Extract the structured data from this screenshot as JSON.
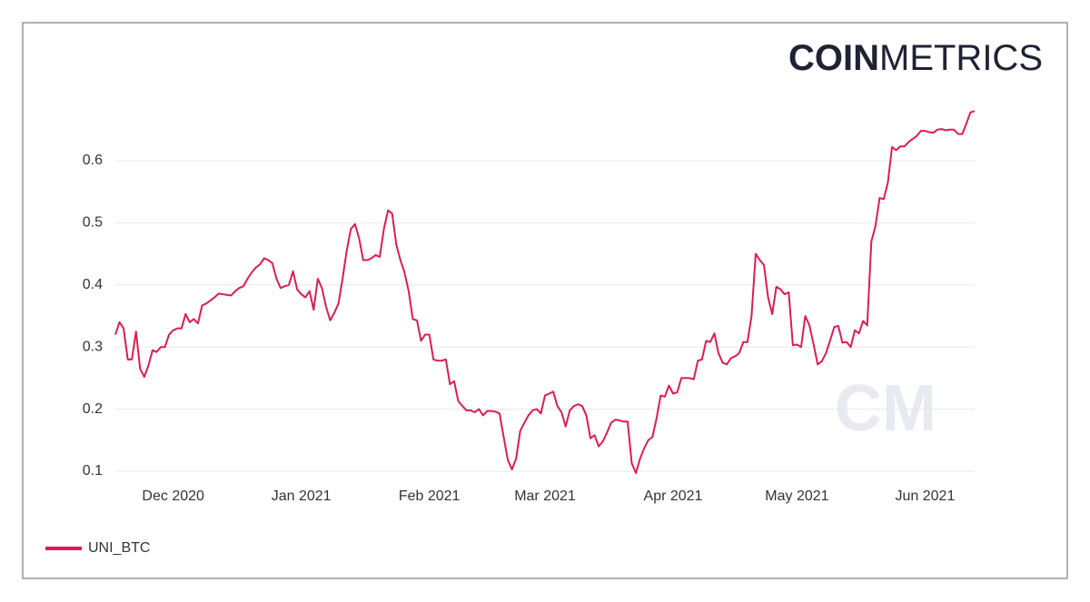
{
  "chart_data": {
    "type": "line",
    "logo": {
      "bold": "COIN",
      "light": "METRICS"
    },
    "watermark": "CM",
    "series": [
      {
        "name": "UNI_BTC",
        "color": "#d81e55",
        "values": [
          0.32,
          0.34,
          0.33,
          0.28,
          0.28,
          0.325,
          0.265,
          0.252,
          0.27,
          0.295,
          0.292,
          0.3,
          0.3,
          0.32,
          0.327,
          0.33,
          0.33,
          0.353,
          0.34,
          0.345,
          0.338,
          0.367,
          0.37,
          0.375,
          0.38,
          0.386,
          0.385,
          0.384,
          0.383,
          0.39,
          0.395,
          0.398,
          0.41,
          0.42,
          0.428,
          0.433,
          0.443,
          0.44,
          0.435,
          0.41,
          0.395,
          0.398,
          0.4,
          0.422,
          0.393,
          0.385,
          0.38,
          0.39,
          0.36,
          0.41,
          0.395,
          0.365,
          0.343,
          0.355,
          0.37,
          0.41,
          0.455,
          0.49,
          0.498,
          0.475,
          0.44,
          0.44,
          0.443,
          0.448,
          0.445,
          0.49,
          0.52,
          0.515,
          0.465,
          0.44,
          0.42,
          0.39,
          0.345,
          0.343,
          0.31,
          0.32,
          0.32,
          0.28,
          0.278,
          0.278,
          0.28,
          0.24,
          0.245,
          0.213,
          0.205,
          0.198,
          0.198,
          0.195,
          0.2,
          0.19,
          0.197,
          0.197,
          0.196,
          0.193,
          0.155,
          0.118,
          0.103,
          0.12,
          0.165,
          0.178,
          0.19,
          0.198,
          0.2,
          0.193,
          0.222,
          0.225,
          0.228,
          0.205,
          0.195,
          0.172,
          0.198,
          0.205,
          0.208,
          0.205,
          0.19,
          0.153,
          0.158,
          0.14,
          0.148,
          0.162,
          0.178,
          0.183,
          0.182,
          0.18,
          0.18,
          0.113,
          0.097,
          0.12,
          0.137,
          0.15,
          0.155,
          0.185,
          0.222,
          0.22,
          0.238,
          0.225,
          0.227,
          0.25,
          0.25,
          0.25,
          0.248,
          0.278,
          0.28,
          0.31,
          0.308,
          0.322,
          0.29,
          0.275,
          0.272,
          0.282,
          0.285,
          0.29,
          0.308,
          0.308,
          0.35,
          0.45,
          0.44,
          0.432,
          0.38,
          0.353,
          0.397,
          0.393,
          0.385,
          0.388,
          0.303,
          0.304,
          0.3,
          0.35,
          0.335,
          0.305,
          0.272,
          0.277,
          0.29,
          0.31,
          0.332,
          0.334,
          0.307,
          0.308,
          0.3,
          0.327,
          0.322,
          0.342,
          0.335,
          0.47,
          0.495,
          0.54,
          0.538,
          0.565,
          0.622,
          0.617,
          0.623,
          0.623,
          0.63,
          0.635,
          0.64,
          0.648,
          0.648,
          0.646,
          0.645,
          0.65,
          0.651,
          0.649,
          0.65,
          0.65,
          0.643,
          0.643,
          0.66,
          0.678,
          0.68
        ]
      }
    ],
    "xlim": [
      0,
      208
    ],
    "xticks": [
      {
        "value": 14,
        "label": "Dec 2020"
      },
      {
        "value": 45,
        "label": "Jan 2021"
      },
      {
        "value": 76,
        "label": "Feb 2021"
      },
      {
        "value": 104,
        "label": "Mar 2021"
      },
      {
        "value": 135,
        "label": "Apr 2021"
      },
      {
        "value": 165,
        "label": "May 2021"
      },
      {
        "value": 196,
        "label": "Jun 2021"
      }
    ],
    "ylim": [
      0.1,
      0.7
    ],
    "yticks": [
      0.1,
      0.2,
      0.3,
      0.4,
      0.5,
      0.6
    ],
    "grid": true,
    "legend": "bottom-left"
  }
}
